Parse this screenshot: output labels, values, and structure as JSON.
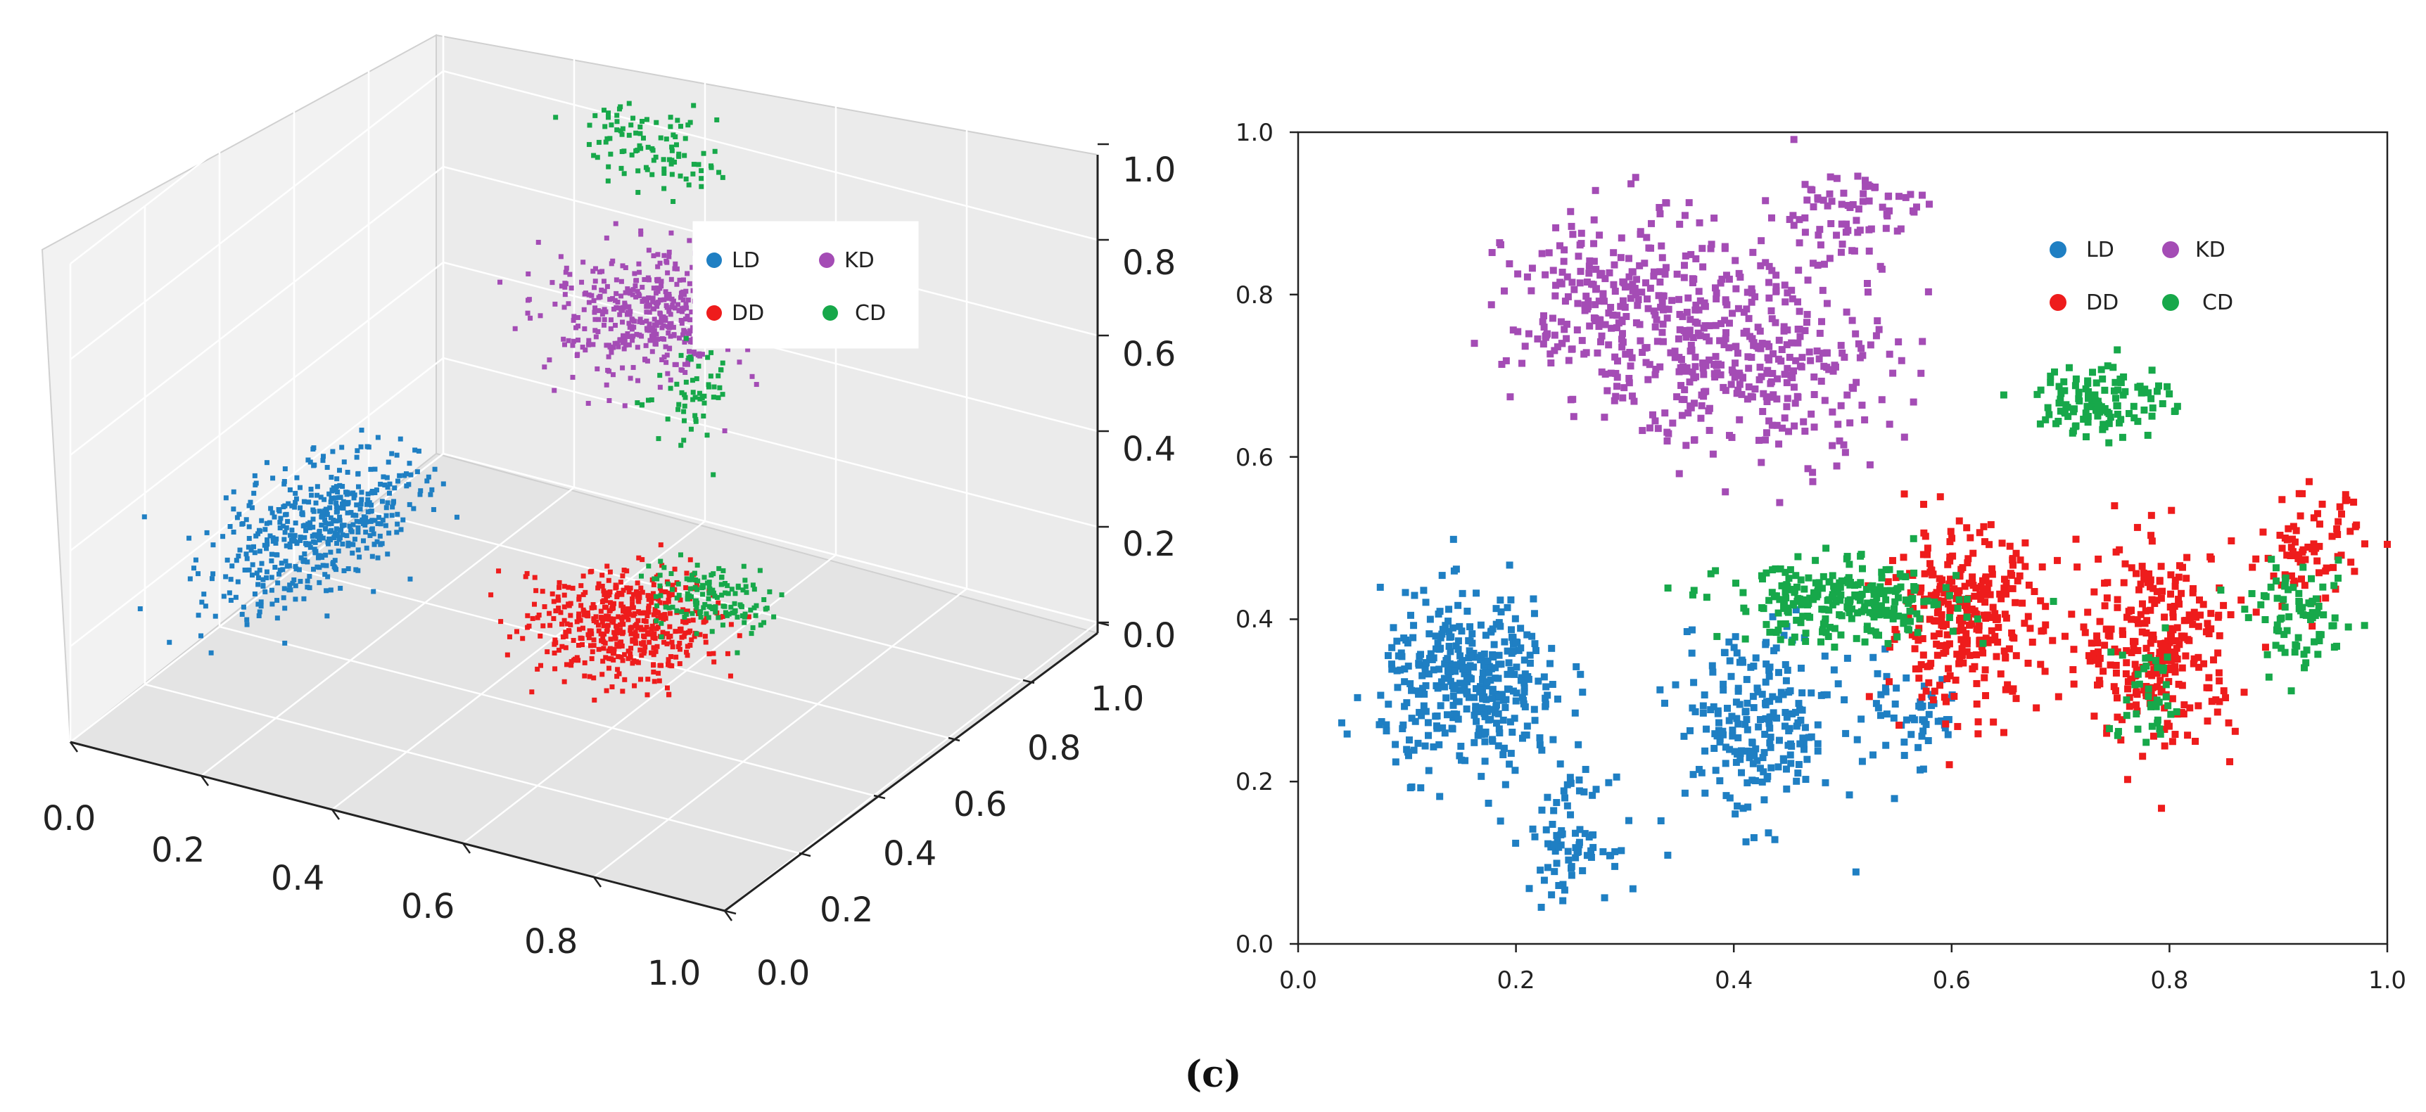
{
  "chart_data": [
    {
      "type": "scatter3d",
      "name": "3D projection",
      "x_ticks": [
        "0.0",
        "0.2",
        "0.4",
        "0.6",
        "0.8",
        "1.0"
      ],
      "y_ticks": [
        "0.0",
        "0.2",
        "0.4",
        "0.6",
        "0.8",
        "1.0"
      ],
      "z_ticks": [
        "0.0",
        "0.2",
        "0.4",
        "0.6",
        "0.8",
        "1.0"
      ],
      "xlim": [
        0,
        1
      ],
      "ylim": [
        0,
        1
      ],
      "zlim": [
        0,
        1
      ],
      "grid": true,
      "legend_position": "upper-right",
      "series": [
        {
          "name": "LD",
          "color": "#1f7fc3",
          "clusters": [
            {
              "center": [
                0.18,
                0.35,
                0.3
              ],
              "spread": [
                0.1,
                0.22,
                0.09
              ],
              "n": 500
            }
          ]
        },
        {
          "name": "KD",
          "color": "#a44cb5",
          "clusters": [
            {
              "center": [
                0.45,
                0.78,
                0.58
              ],
              "spread": [
                0.13,
                0.14,
                0.09
              ],
              "n": 480
            }
          ]
        },
        {
          "name": "DD",
          "color": "#ee1c1c",
          "clusters": [
            {
              "center": [
                0.62,
                0.4,
                0.22
              ],
              "spread": [
                0.12,
                0.12,
                0.08
              ],
              "n": 480
            }
          ]
        },
        {
          "name": "CD",
          "color": "#17a84a",
          "clusters": [
            {
              "center": [
                0.72,
                0.45,
                0.28
              ],
              "spread": [
                0.09,
                0.06,
                0.06
              ],
              "n": 140
            },
            {
              "center": [
                0.35,
                0.95,
                0.8
              ],
              "spread": [
                0.1,
                0.05,
                0.08
              ],
              "n": 100
            },
            {
              "center": [
                0.55,
                0.7,
                0.5
              ],
              "spread": [
                0.05,
                0.08,
                0.1
              ],
              "n": 60
            }
          ]
        }
      ]
    },
    {
      "type": "scatter",
      "name": "2D projection",
      "x_ticks": [
        "0.0",
        "0.2",
        "0.4",
        "0.6",
        "0.8",
        "1.0"
      ],
      "y_ticks": [
        "0.0",
        "0.2",
        "0.4",
        "0.6",
        "0.8",
        "1.0"
      ],
      "xlim": [
        0,
        1
      ],
      "ylim": [
        0,
        1
      ],
      "grid": false,
      "legend_position": "upper-right",
      "series": [
        {
          "name": "LD",
          "color": "#1f7fc3",
          "clusters": [
            {
              "center": [
                0.16,
                0.32
              ],
              "spread": [
                0.07,
                0.09
              ],
              "n": 380
            },
            {
              "center": [
                0.25,
                0.13
              ],
              "spread": [
                0.03,
                0.06
              ],
              "n": 80
            },
            {
              "center": [
                0.42,
                0.27
              ],
              "spread": [
                0.06,
                0.1
              ],
              "n": 220
            },
            {
              "center": [
                0.56,
                0.28
              ],
              "spread": [
                0.05,
                0.06
              ],
              "n": 60
            }
          ]
        },
        {
          "name": "KD",
          "color": "#a44cb5",
          "clusters": [
            {
              "center": [
                0.3,
                0.78
              ],
              "spread": [
                0.09,
                0.1
              ],
              "n": 300
            },
            {
              "center": [
                0.43,
                0.72
              ],
              "spread": [
                0.1,
                0.1
              ],
              "n": 300
            },
            {
              "center": [
                0.5,
                0.9
              ],
              "spread": [
                0.06,
                0.05
              ],
              "n": 80
            }
          ]
        },
        {
          "name": "DD",
          "color": "#ee1c1c",
          "clusters": [
            {
              "center": [
                0.61,
                0.4
              ],
              "spread": [
                0.06,
                0.09
              ],
              "n": 300
            },
            {
              "center": [
                0.79,
                0.37
              ],
              "spread": [
                0.06,
                0.1
              ],
              "n": 300
            },
            {
              "center": [
                0.93,
                0.48
              ],
              "spread": [
                0.04,
                0.06
              ],
              "n": 80
            }
          ]
        },
        {
          "name": "CD",
          "color": "#17a84a",
          "clusters": [
            {
              "center": [
                0.5,
                0.42
              ],
              "spread": [
                0.09,
                0.04
              ],
              "n": 260
            },
            {
              "center": [
                0.74,
                0.67
              ],
              "spread": [
                0.05,
                0.04
              ],
              "n": 120
            },
            {
              "center": [
                0.92,
                0.4
              ],
              "spread": [
                0.04,
                0.05
              ],
              "n": 80
            },
            {
              "center": [
                0.78,
                0.3
              ],
              "spread": [
                0.03,
                0.06
              ],
              "n": 40
            }
          ]
        }
      ]
    }
  ],
  "caption": "(c)"
}
